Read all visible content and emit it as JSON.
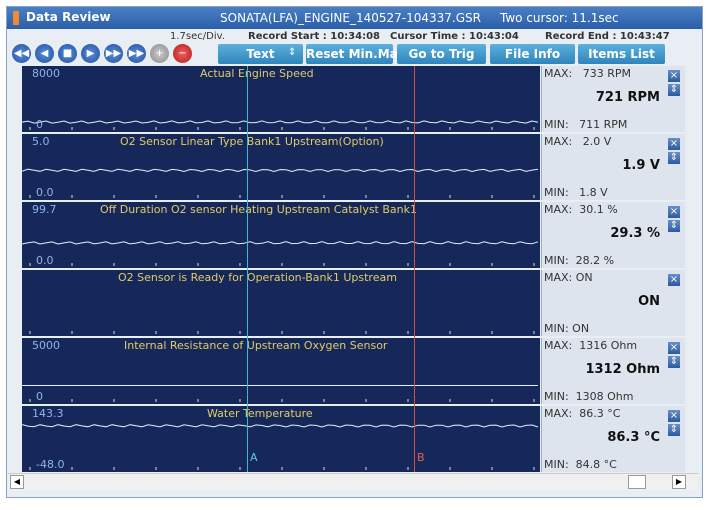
{
  "window": {
    "title": "Data Review",
    "file": "SONATA(LFA)_ENGINE_140527-104337.GSR",
    "cursor_info": "Two cursor: 11.1sec"
  },
  "info_bar": {
    "division": "1.7sec/Div.",
    "record_start": "Record Start : 10:34:08",
    "cursor_time": "Cursor Time : 10:43:04",
    "record_end": "Record End : 10:43:47"
  },
  "toolbar": {
    "buttons": [
      "Text",
      "Reset Min.Max",
      "Go to Trig",
      "File Info",
      "Items List"
    ]
  },
  "panels": [
    {
      "top": "8000",
      "bottom": "0",
      "title": "Actual Engine Speed",
      "max": "MAX:   733 RPM",
      "value": "721 RPM",
      "min": "MIN:   711 RPM"
    },
    {
      "top": "5.0",
      "bottom": "0.0",
      "title": "O2 Sensor Linear Type Bank1 Upstream(Option)",
      "max": "MAX:   2.0 V",
      "value": "1.9 V",
      "min": "MIN:   1.8 V"
    },
    {
      "top": "99.7",
      "bottom": "0.0",
      "title": "Off Duration O2 sensor Heating Upstream Catalyst Bank1",
      "max": "MAX:  30.1 %",
      "value": "29.3 %",
      "min": "MIN:  28.2 %"
    },
    {
      "top": "",
      "bottom": "",
      "title": "O2 Sensor is Ready for Operation-Bank1 Upstream",
      "max": "MAX: ON",
      "value": "ON",
      "min": "MIN: ON"
    },
    {
      "top": "5000",
      "bottom": "0",
      "title": "Internal Resistance of Upstream Oxygen Sensor",
      "max": "MAX:  1316 Ohm",
      "value": "1312 Ohm",
      "min": "MIN:  1308 Ohm"
    },
    {
      "top": "143.3",
      "bottom": "-48.0",
      "title": "Water Temperature",
      "max": "MAX:  86.3 °C",
      "value": "86.3 °C",
      "min": "MIN:  84.8 °C"
    }
  ],
  "cursors": [
    "A",
    "B"
  ]
}
